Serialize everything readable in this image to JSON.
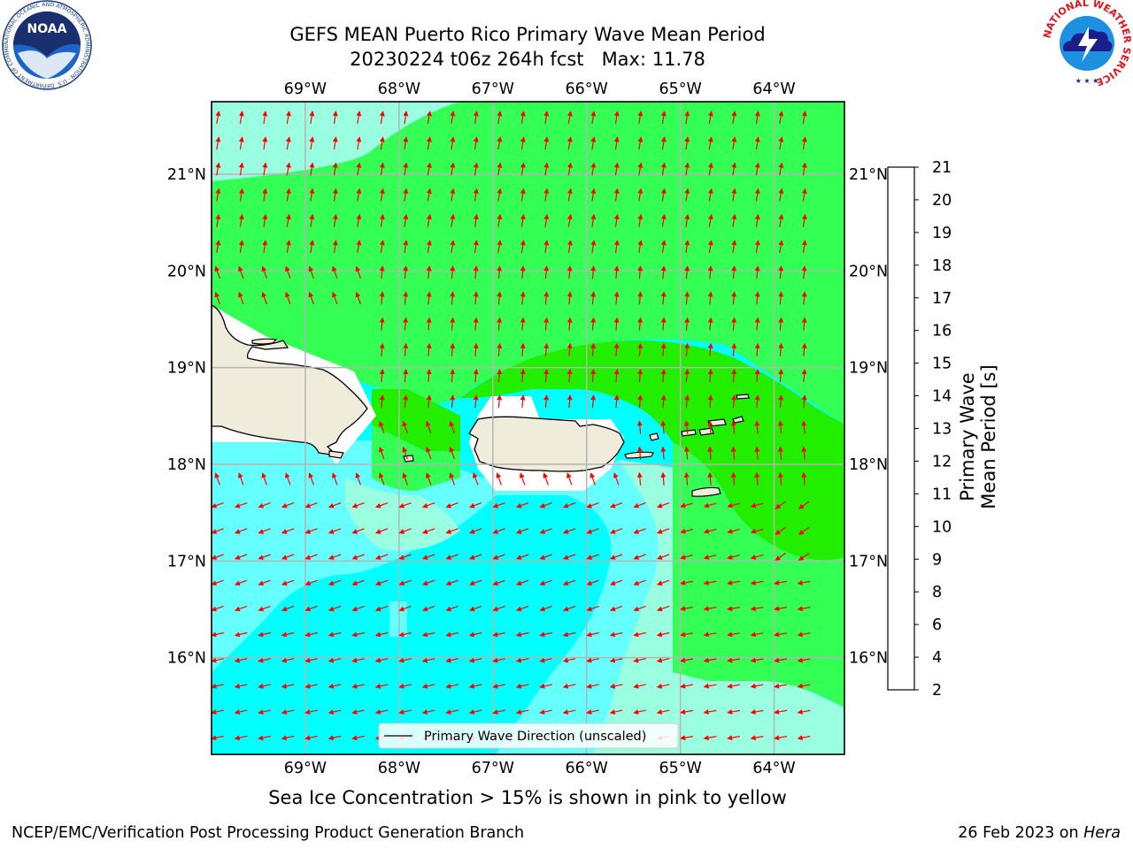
{
  "title": {
    "line1": "GEFS MEAN Puerto Rico Primary Wave Mean Period",
    "line2": "20230224 t06z 264h fcst   Max: 11.78"
  },
  "map": {
    "lon_ticks": [
      "69°W",
      "68°W",
      "67°W",
      "66°W",
      "65°W",
      "64°W"
    ],
    "lat_ticks": [
      "21°N",
      "20°N",
      "19°N",
      "18°N",
      "17°N",
      "16°N"
    ],
    "lon_range": [
      -70.0,
      -63.25
    ],
    "lat_range": [
      15.0,
      21.75
    ],
    "arrow_color": "#ff0000",
    "land_color": "#efecdc",
    "legend_label": "Primary Wave Direction (unscaled)"
  },
  "colorbar": {
    "label": "Primary Wave Mean Period [s]",
    "ticks": [
      "2",
      "4",
      "6",
      "8",
      "9",
      "10",
      "11",
      "12",
      "13",
      "14",
      "15",
      "16",
      "17",
      "18",
      "19",
      "20",
      "21"
    ],
    "colors": [
      "#0000ff",
      "#0070ff",
      "#00ffff",
      "#66ffff",
      "#99ffe0",
      "#33ff55",
      "#22ee00",
      "#7cff00",
      "#ccff00",
      "#ffff00",
      "#ffcc00",
      "#ff9900",
      "#ff6600",
      "#ff3300",
      "#ff0000"
    ]
  },
  "caption": "Sea Ice Concentration > 15% is shown in pink to yellow",
  "footer": {
    "left": "NCEP/EMC/Verification Post Processing Product Generation Branch",
    "right_prefix": "26 Feb 2023 on ",
    "right_host": "Hera"
  },
  "logos": {
    "noaa_text": "NOAA",
    "noaa_ring": "NATIONAL OCEANIC AND ATMOSPHERIC ADMINISTRATION · U.S. DEPARTMENT OF COMMERCE",
    "nws_ring": "NATIONAL WEATHER SERVICE"
  }
}
